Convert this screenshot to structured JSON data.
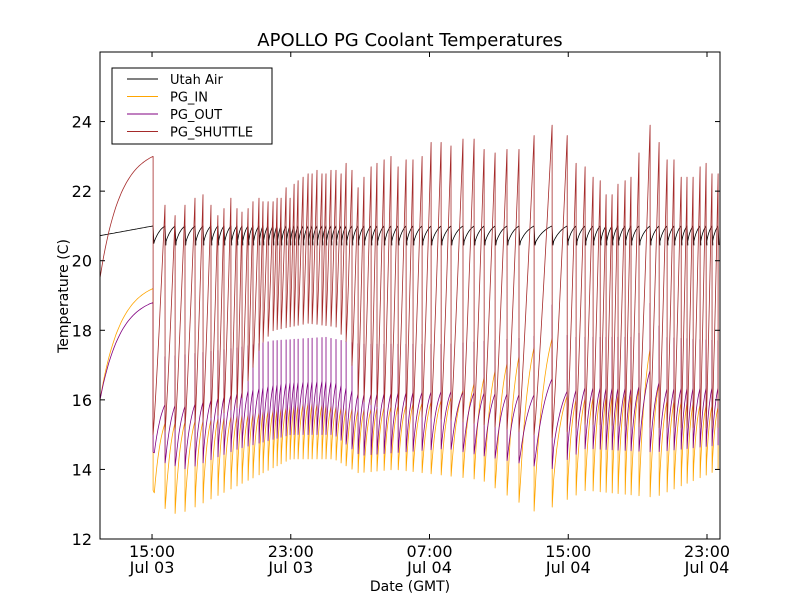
{
  "chart_data": {
    "type": "line",
    "title": "APOLLO PG Coolant Temperatures",
    "xlabel": "Date (GMT)",
    "ylabel": "Temperature (C)",
    "x_unit": "hours since Jul 03 12:00 GMT",
    "xlim": [
      0,
      35.75
    ],
    "ylim": [
      12,
      26
    ],
    "yticks": [
      12,
      14,
      16,
      18,
      20,
      22,
      24
    ],
    "xticks": [
      {
        "hour": 3,
        "line1": "15:00",
        "line2": "Jul 03"
      },
      {
        "hour": 11,
        "line1": "23:00",
        "line2": "Jul 03"
      },
      {
        "hour": 19,
        "line1": "07:00",
        "line2": "Jul 04"
      },
      {
        "hour": 27,
        "line1": "15:00",
        "line2": "Jul 04"
      },
      {
        "hour": 35,
        "line1": "23:00",
        "line2": "Jul 04"
      }
    ],
    "grid": false,
    "legend": {
      "position": "top-left",
      "frame": true
    },
    "series": [
      {
        "name": "Utah Air",
        "color": "#000000"
      },
      {
        "name": "PG_IN",
        "color": "#FFA500"
      },
      {
        "name": "PG_OUT",
        "color": "#800080"
      },
      {
        "name": "PG_SHUTTLE",
        "color": "#A52A2A"
      }
    ],
    "initial_warmup": {
      "start_hour": 0,
      "end_hour": 3.06,
      "utah_air": [
        20.72,
        21.0
      ],
      "pg_in": [
        16.0,
        19.2
      ],
      "pg_out": [
        16.0,
        18.8
      ],
      "pg_shuttle": [
        19.5,
        23.0
      ]
    },
    "first_drop": {
      "hour": 3.06,
      "pg_shuttle_low": 15.0,
      "pg_out_low": 14.5,
      "pg_in_low": 13.4,
      "utah_air_low": 20.5
    },
    "cycles_peak_hours": [
      3.75,
      4.33,
      4.9,
      5.48,
      5.94,
      6.4,
      6.8,
      7.15,
      7.55,
      7.9,
      8.19,
      8.54,
      8.82,
      9.17,
      9.4,
      9.69,
      9.98,
      10.21,
      10.44,
      10.73,
      10.96,
      11.19,
      11.42,
      11.71,
      12.0,
      12.23,
      12.51,
      12.8,
      13.03,
      13.32,
      13.61,
      13.9,
      14.19,
      14.53,
      14.88,
      15.22,
      15.63,
      15.97,
      16.38,
      16.78,
      17.19,
      17.65,
      18.05,
      18.57,
      19.09,
      19.67,
      20.24,
      20.93,
      21.57,
      22.15,
      22.78,
      23.47,
      24.16,
      25.03,
      26.07,
      26.94,
      27.45,
      27.97,
      28.43,
      28.84,
      29.18,
      29.53,
      29.87,
      30.28,
      30.62,
      31.08,
      31.72,
      32.24,
      32.7,
      33.1,
      33.51,
      33.85,
      34.2,
      34.6,
      34.95,
      35.29,
      35.64
    ],
    "pg_shuttle_peaks": [
      21.6,
      21.3,
      21.6,
      21.8,
      21.9,
      21.6,
      21.3,
      21.5,
      21.8,
      21.5,
      21.4,
      21.5,
      21.7,
      21.8,
      21.7,
      21.7,
      21.7,
      21.8,
      21.8,
      22.1,
      21.8,
      22.2,
      22.3,
      22.4,
      22.5,
      22.5,
      22.6,
      22.5,
      22.5,
      22.6,
      22.6,
      22.5,
      22.8,
      22.6,
      22.1,
      22.4,
      22.7,
      22.8,
      22.9,
      23.0,
      22.7,
      22.9,
      22.9,
      23.0,
      23.4,
      23.4,
      23.3,
      23.5,
      23.5,
      23.2,
      23.1,
      23.2,
      23.2,
      23.6,
      23.9,
      23.6,
      22.8,
      22.7,
      22.4,
      22.3,
      21.9,
      21.9,
      22.2,
      22.3,
      22.4,
      23.1,
      23.9,
      23.4,
      22.9,
      22.9,
      22.4,
      22.4,
      22.4,
      22.7,
      22.8,
      22.5,
      22.5
    ],
    "pg_shuttle_low_profile": [
      [
        3,
        15.0
      ],
      [
        5,
        15.2
      ],
      [
        8,
        15.8
      ],
      [
        9.3,
        17.6
      ],
      [
        10,
        18.0
      ],
      [
        12,
        18.2
      ],
      [
        13.6,
        18.1
      ],
      [
        14.3,
        17.6
      ],
      [
        14.9,
        16.0
      ],
      [
        17,
        15.6
      ],
      [
        22,
        15.3
      ],
      [
        26,
        14.9
      ],
      [
        28,
        15.3
      ],
      [
        32,
        15.2
      ],
      [
        35.7,
        15.2
      ]
    ],
    "pg_out_high_profile": [
      [
        3,
        17.2
      ],
      [
        5,
        17.3
      ],
      [
        8,
        17.5
      ],
      [
        10,
        17.7
      ],
      [
        13,
        17.8
      ],
      [
        15,
        17.6
      ],
      [
        20,
        17.6
      ],
      [
        25,
        17.8
      ],
      [
        26,
        18.8
      ],
      [
        27,
        17.8
      ],
      [
        31,
        17.8
      ],
      [
        31.7,
        18.8
      ],
      [
        32.5,
        17.8
      ],
      [
        35.7,
        17.7
      ]
    ],
    "pg_out_low_profile": [
      [
        3,
        14.3
      ],
      [
        5,
        14.0
      ],
      [
        8,
        14.6
      ],
      [
        11,
        15.0
      ],
      [
        13.5,
        15.0
      ],
      [
        15,
        14.4
      ],
      [
        20,
        14.6
      ],
      [
        25,
        14.1
      ],
      [
        26,
        14.0
      ],
      [
        28,
        14.6
      ],
      [
        32,
        14.5
      ],
      [
        35.7,
        14.7
      ]
    ],
    "pg_in_low_profile": [
      [
        3,
        13.4
      ],
      [
        4,
        12.7
      ],
      [
        5,
        12.8
      ],
      [
        7,
        13.3
      ],
      [
        9,
        13.8
      ],
      [
        11,
        14.3
      ],
      [
        13.5,
        14.3
      ],
      [
        14.9,
        13.9
      ],
      [
        17,
        14.0
      ],
      [
        22,
        13.7
      ],
      [
        25,
        12.8
      ],
      [
        26,
        12.9
      ],
      [
        28,
        13.4
      ],
      [
        32,
        13.2
      ],
      [
        35.7,
        14.0
      ]
    ],
    "pg_in_high_profile": [
      [
        3,
        15.3
      ],
      [
        6,
        15.4
      ],
      [
        9,
        15.6
      ],
      [
        12,
        15.9
      ],
      [
        15,
        15.7
      ],
      [
        20,
        16.0
      ],
      [
        25,
        17.5
      ],
      [
        26,
        17.9
      ],
      [
        27,
        16.0
      ],
      [
        31,
        16.2
      ],
      [
        31.7,
        17.5
      ],
      [
        32.5,
        16.0
      ],
      [
        35.7,
        15.8
      ]
    ],
    "utah_air_profile": {
      "peak": 21.0,
      "trough": 20.45
    }
  }
}
